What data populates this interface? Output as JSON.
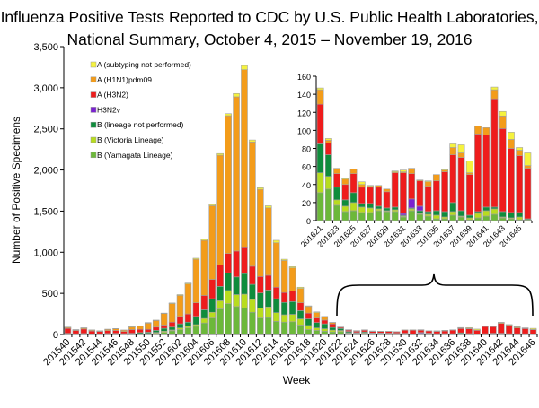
{
  "chart_data": [
    {
      "type": "bar",
      "stacked": true,
      "title": "Influenza Positive Tests Reported to CDC by U.S. Public Health Laboratories,",
      "subtitle": "National Summary, October 4, 2015 – November 19, 2016",
      "xlabel": "Week",
      "ylabel": "Number of Positive Specimens",
      "ylim": [
        0,
        3500
      ],
      "y_ticks": [
        "0",
        "500",
        "1,000",
        "1,500",
        "2,000",
        "2,500",
        "3,000",
        "3,500"
      ],
      "y_tick_values": [
        0,
        500,
        1000,
        1500,
        2000,
        2500,
        3000,
        3500
      ],
      "grid": false,
      "legend_position": "top-left",
      "categories": [
        "201540",
        "201541",
        "201542",
        "201543",
        "201544",
        "201545",
        "201546",
        "201547",
        "201548",
        "201549",
        "201550",
        "201551",
        "201552",
        "201601",
        "201602",
        "201603",
        "201604",
        "201605",
        "201606",
        "201607",
        "201608",
        "201609",
        "201610",
        "201611",
        "201612",
        "201613",
        "201614",
        "201615",
        "201616",
        "201617",
        "201618",
        "201619",
        "201620",
        "201621",
        "201622",
        "201623",
        "201624",
        "201625",
        "201626",
        "201627",
        "201628",
        "201629",
        "201630",
        "201631",
        "201632",
        "201633",
        "201634",
        "201635",
        "201636",
        "201637",
        "201638",
        "201639",
        "201640",
        "201641",
        "201642",
        "201643",
        "201644",
        "201645",
        "201646"
      ],
      "x_tick_labels": [
        "201540",
        "201542",
        "201544",
        "201546",
        "201548",
        "201550",
        "201552",
        "201602",
        "201604",
        "201606",
        "201608",
        "201610",
        "201612",
        "201614",
        "201616",
        "201618",
        "201620",
        "201622",
        "201624",
        "201626",
        "201628",
        "201630",
        "201632",
        "201634",
        "201636",
        "201638",
        "201640",
        "201642",
        "201644",
        "201646"
      ],
      "series": [
        {
          "name": "B (Yamagata Lineage)",
          "color": "#6cb83a",
          "values": [
            3,
            2,
            3,
            2,
            2,
            3,
            4,
            2,
            3,
            5,
            8,
            15,
            25,
            45,
            60,
            80,
            100,
            140,
            200,
            310,
            375,
            340,
            325,
            270,
            200,
            205,
            160,
            150,
            155,
            115,
            60,
            50,
            40,
            31,
            35,
            17,
            10,
            11,
            9,
            9,
            11,
            10,
            10,
            4,
            11,
            7,
            5,
            2,
            2,
            6,
            4,
            1,
            3,
            5,
            7,
            3,
            2,
            1,
            1
          ]
        },
        {
          "name": "B (Victoria Lineage)",
          "color": "#b8dc1e",
          "values": [
            1,
            1,
            1,
            1,
            1,
            1,
            2,
            1,
            2,
            3,
            5,
            10,
            15,
            10,
            20,
            20,
            20,
            55,
            70,
            100,
            160,
            145,
            165,
            155,
            120,
            130,
            105,
            90,
            90,
            75,
            50,
            30,
            30,
            22,
            14,
            6,
            6,
            9,
            6,
            5,
            2,
            1,
            2,
            1,
            2,
            1,
            2,
            4,
            2,
            4,
            1,
            2,
            5,
            6,
            6,
            1,
            1,
            3,
            0
          ]
        },
        {
          "name": "B (lineage not performed)",
          "color": "#0f8c3c",
          "values": [
            10,
            6,
            8,
            5,
            5,
            8,
            8,
            8,
            10,
            15,
            15,
            25,
            35,
            35,
            50,
            50,
            100,
            105,
            165,
            175,
            215,
            215,
            250,
            185,
            185,
            205,
            170,
            150,
            155,
            100,
            80,
            65,
            60,
            32,
            24,
            14,
            7,
            11,
            4,
            5,
            3,
            3,
            3,
            1,
            1,
            3,
            3,
            5,
            6,
            10,
            6,
            3,
            2,
            4,
            2,
            6,
            6,
            5,
            1
          ]
        },
        {
          "name": "H3N2v",
          "color": "#7a22d0",
          "values": [
            0,
            0,
            0,
            0,
            0,
            0,
            0,
            0,
            0,
            0,
            0,
            0,
            0,
            0,
            0,
            0,
            0,
            0,
            0,
            0,
            0,
            0,
            0,
            0,
            0,
            0,
            0,
            0,
            0,
            0,
            0,
            0,
            0,
            0,
            0,
            0,
            0,
            0,
            0,
            0,
            0,
            0,
            0,
            2,
            10,
            5,
            0,
            0,
            0,
            0,
            0,
            0,
            0,
            0,
            0,
            0,
            0,
            0,
            0
          ]
        },
        {
          "name": "A (H3N2)",
          "color": "#ee1c1c",
          "values": [
            60,
            40,
            55,
            35,
            30,
            35,
            35,
            25,
            45,
            40,
            35,
            40,
            40,
            60,
            90,
            100,
            165,
            175,
            235,
            260,
            235,
            315,
            315,
            220,
            200,
            180,
            140,
            120,
            130,
            95,
            70,
            55,
            45,
            44,
            13,
            15,
            17,
            21,
            18,
            18,
            21,
            18,
            38,
            45,
            28,
            28,
            28,
            33,
            44,
            53,
            59,
            45,
            86,
            80,
            120,
            92,
            71,
            63,
            56
          ]
        },
        {
          "name": "A (H1N1)pdm09",
          "color": "#f39c1a",
          "values": [
            12,
            8,
            12,
            10,
            5,
            15,
            20,
            16,
            30,
            38,
            75,
            80,
            140,
            225,
            255,
            365,
            530,
            670,
            895,
            1335,
            1675,
            1875,
            2165,
            1510,
            1060,
            820,
            540,
            390,
            280,
            175,
            80,
            65,
            40,
            16,
            3,
            5,
            6,
            5,
            3,
            1,
            2,
            3,
            1,
            1,
            6,
            1,
            5,
            7,
            2,
            8,
            5,
            2,
            9,
            8,
            10,
            14,
            10,
            6,
            3
          ]
        },
        {
          "name": "A (subtyping not performed)",
          "color": "#f5f23e",
          "values": [
            4,
            3,
            3,
            3,
            2,
            3,
            4,
            3,
            8,
            5,
            7,
            5,
            5,
            8,
            10,
            10,
            12,
            15,
            15,
            20,
            25,
            40,
            50,
            25,
            20,
            25,
            30,
            15,
            15,
            15,
            8,
            10,
            5,
            2,
            2,
            1,
            1,
            0,
            3,
            1,
            0,
            0,
            1,
            2,
            0,
            0,
            1,
            0,
            1,
            4,
            9,
            13,
            0,
            0,
            3,
            5,
            8,
            3,
            14
          ]
        }
      ],
      "legend_order": [
        "A (subtyping not performed)",
        "A (H1N1)pdm09",
        "A (H3N2)",
        "H3N2v",
        "B (lineage not performed)",
        "B (Victoria Lineage)",
        "B (Yamagata Lineage)"
      ]
    },
    {
      "type": "bar",
      "stacked": true,
      "inset": true,
      "ylim": [
        0,
        160
      ],
      "y_ticks": [
        "0",
        "20",
        "40",
        "60",
        "80",
        "100",
        "120",
        "140",
        "160"
      ],
      "y_tick_values": [
        0,
        20,
        40,
        60,
        80,
        100,
        120,
        140,
        160
      ],
      "categories": [
        "201621",
        "201622",
        "201623",
        "201624",
        "201625",
        "201626",
        "201627",
        "201628",
        "201629",
        "201630",
        "201631",
        "201632",
        "201633",
        "201634",
        "201635",
        "201636",
        "201637",
        "201638",
        "201639",
        "201640",
        "201641",
        "201642",
        "201643",
        "201644",
        "201645",
        "201646"
      ],
      "x_tick_labels": [
        "201621",
        "201623",
        "201625",
        "201627",
        "201629",
        "201631",
        "201633",
        "201635",
        "201637",
        "201639",
        "201641",
        "201643",
        "201645"
      ],
      "series_from_main_range": [
        "201621",
        "201646"
      ]
    }
  ]
}
